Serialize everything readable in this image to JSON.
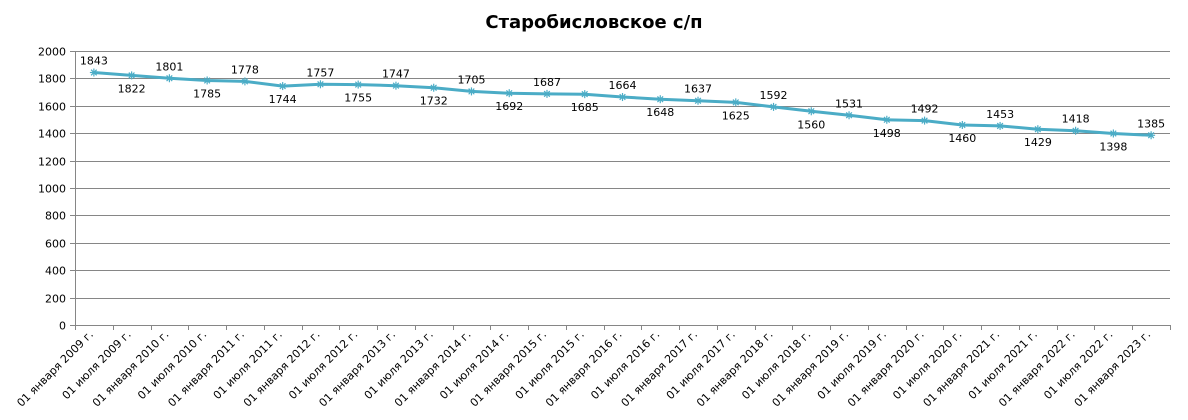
{
  "chart_data": {
    "type": "line",
    "title": "Старобисловское с/п",
    "xlabel": "",
    "ylabel": "",
    "ylim": [
      0,
      2000
    ],
    "yticks": [
      0,
      200,
      400,
      600,
      800,
      1000,
      1200,
      1400,
      1600,
      1800,
      2000
    ],
    "grid": true,
    "legend": "none",
    "line_color": "#4BACC6",
    "categories": [
      "01 января 2009 г.",
      "01 июля 2009 г.",
      "01 января 2010 г.",
      "01 июля 2010 г.",
      "01 января 2011 г.",
      "01 июля 2011 г.",
      "01 января 2012 г.",
      "01 июля 2012 г.",
      "01 января 2013 г.",
      "01 июля 2013 г.",
      "01 января 2014 г.",
      "01 июля 2014 г.",
      "01 января 2015 г.",
      "01 июля 2015 г.",
      "01 января 2016 г.",
      "01 июля 2016 г.",
      "01 января 2017 г.",
      "01 июля 2017 г.",
      "01 января 2018 г.",
      "01 июля 2018 г.",
      "01 января 2019 г.",
      "01 июля 2019 г.",
      "01 января 2020 г.",
      "01 июля 2020 г.",
      "01 января 2021 г.",
      "01 июля 2021 г.",
      "01 января 2022 г.",
      "01 июля 2022 г.",
      "01 января 2023 г."
    ],
    "series": [
      {
        "values": [
          1843,
          1822,
          1801,
          1785,
          1778,
          1744,
          1757,
          1755,
          1747,
          1732,
          1705,
          1692,
          1687,
          1685,
          1664,
          1648,
          1637,
          1625,
          1592,
          1560,
          1531,
          1498,
          1492,
          1460,
          1453,
          1429,
          1418,
          1398,
          1385
        ],
        "label_position": [
          "above",
          "below",
          "above",
          "below",
          "above",
          "below",
          "above",
          "below",
          "above",
          "below",
          "above",
          "below",
          "above",
          "below",
          "above",
          "below",
          "above",
          "below",
          "above",
          "below",
          "above",
          "below",
          "above",
          "below",
          "above",
          "below",
          "above",
          "below",
          "above"
        ]
      }
    ]
  }
}
